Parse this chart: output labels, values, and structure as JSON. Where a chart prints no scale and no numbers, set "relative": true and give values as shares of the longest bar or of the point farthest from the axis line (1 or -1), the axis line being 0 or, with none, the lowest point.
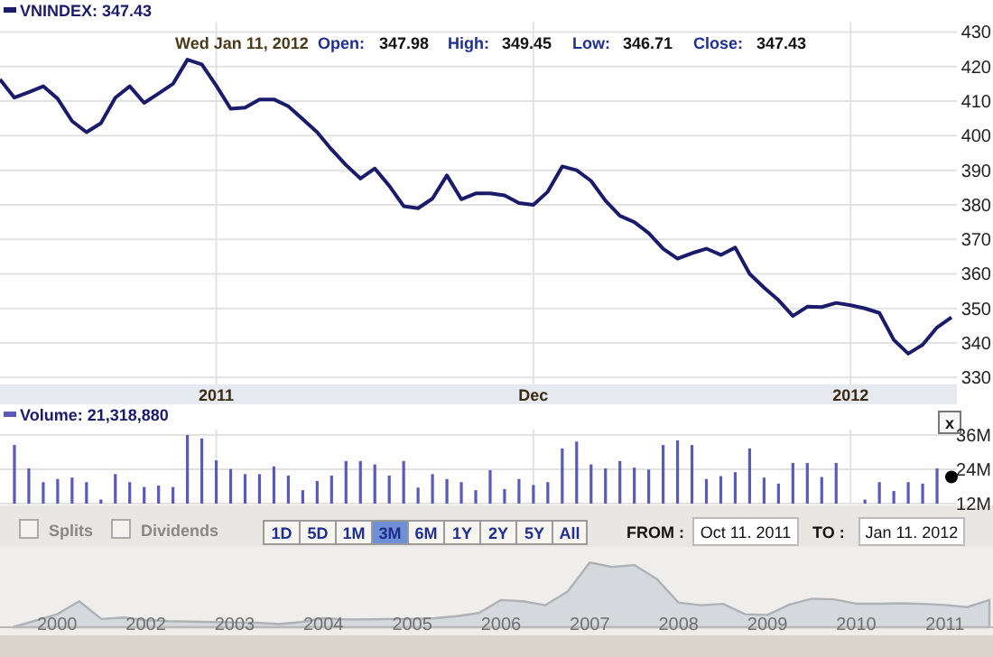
{
  "chart_data": [
    {
      "type": "line",
      "title": "VNINDEX: 347.43",
      "annotations": [
        "Wed Jan 11, 2012",
        "Open:",
        "347.98",
        "High:",
        "349.45",
        "Low:",
        "346.71",
        "Close:",
        "347.43"
      ],
      "categories": [
        null,
        null,
        null,
        null,
        null,
        null,
        null,
        null,
        null,
        null,
        null,
        null,
        null,
        null,
        null,
        "2011",
        null,
        null,
        null,
        null,
        null,
        null,
        null,
        null,
        null,
        null,
        null,
        null,
        null,
        null,
        null,
        null,
        null,
        null,
        null,
        null,
        null,
        "Dec",
        null,
        null,
        null,
        null,
        null,
        null,
        null,
        null,
        null,
        null,
        null,
        null,
        null,
        null,
        null,
        null,
        null,
        null,
        null,
        null,
        null,
        "2012",
        null,
        null,
        null,
        null,
        null,
        null,
        null
      ],
      "values": [
        416.3,
        411,
        412.6,
        414.3,
        410.7,
        404.2,
        401,
        403.6,
        411,
        414.3,
        409.5,
        412.2,
        415,
        422,
        420.6,
        414.5,
        407.8,
        408.1,
        410.5,
        410.5,
        408.5,
        404.8,
        401,
        396,
        391.5,
        387.6,
        390.5,
        385.5,
        379.6,
        379,
        381.8,
        388.5,
        381.6,
        383.3,
        383.3,
        382.7,
        380.5,
        380,
        383.8,
        391.1,
        390,
        386.9,
        381.2,
        376.8,
        375,
        371.8,
        367.3,
        364.4,
        366,
        367.3,
        365.5,
        367.6,
        360,
        356,
        352.4,
        347.8,
        350.5,
        350.4,
        351.6,
        350.9,
        350,
        348.7,
        340.9,
        336.9,
        339.5,
        344.5,
        347.4
      ],
      "color": "#1b1b6b",
      "ylim": [
        328,
        433
      ],
      "yticks": [
        330,
        340,
        350,
        360,
        370,
        380,
        390,
        400,
        410,
        420,
        430
      ],
      "grid": true
    },
    {
      "type": "bar",
      "title": "Volume: 21,318,880",
      "categories": [
        null,
        null,
        null,
        null,
        null,
        null,
        null,
        null,
        null,
        null,
        null,
        null,
        null,
        null,
        null,
        null,
        null,
        null,
        null,
        null,
        null,
        null,
        null,
        null,
        null,
        null,
        null,
        null,
        null,
        null,
        null,
        null,
        null,
        null,
        null,
        null,
        null,
        null,
        null,
        null,
        null,
        null,
        null,
        null,
        null,
        null,
        null,
        null,
        null,
        null,
        null,
        null,
        null,
        null,
        null,
        null,
        null,
        null,
        null,
        null,
        null,
        null,
        null,
        null,
        null,
        null,
        null
      ],
      "series": [
        {
          "color": "#5a5ab8",
          "values": [
            null,
            32.5,
            24.3,
            19.5,
            20.6,
            21.1,
            19.5,
            13.4,
            22.3,
            19.5,
            17.8,
            18.3,
            17.8,
            36,
            34.8,
            27.1,
            24.1,
            22.3,
            22.3,
            25,
            21.8,
            16.7,
            19.9,
            21.8,
            26.9,
            26.9,
            25.7,
            21.8,
            26.9,
            17.6,
            22.3,
            20.6,
            19.5,
            16.7,
            23.7,
            17.1,
            20.6,
            18.5,
            19.5,
            31.3,
            33.7,
            25.7,
            24.3,
            26.9,
            24.6,
            23.9,
            32.5,
            34.1,
            32.5,
            20.6,
            21.6,
            23,
            31.3,
            21.1,
            19,
            26.2,
            26.2,
            21.3,
            26.2,
            null,
            13.4,
            19.5,
            16.4,
            19.5,
            19,
            24.3,
            null
          ]
        },
        {
          "type": "scatter",
          "color": "#000000",
          "values": [
            null,
            null,
            null,
            null,
            null,
            null,
            null,
            null,
            null,
            null,
            null,
            null,
            null,
            null,
            null,
            null,
            null,
            null,
            null,
            null,
            null,
            null,
            null,
            null,
            null,
            null,
            null,
            null,
            null,
            null,
            null,
            null,
            null,
            null,
            null,
            null,
            null,
            null,
            null,
            null,
            null,
            null,
            null,
            null,
            null,
            null,
            null,
            null,
            null,
            null,
            null,
            null,
            null,
            null,
            null,
            null,
            null,
            null,
            null,
            null,
            null,
            null,
            null,
            null,
            null,
            null,
            21.3
          ]
        }
      ],
      "marker": "circle",
      "ylim": [
        12,
        36
      ],
      "yticks": [
        {
          "value": 12,
          "label": "12M"
        },
        {
          "value": 24,
          "label": "24M"
        },
        {
          "value": 36,
          "label": "36M"
        }
      ],
      "grid": true,
      "tick_labels": "y"
    },
    {
      "type": "area",
      "relative": true,
      "categories": [
        null,
        null,
        "2000",
        null,
        null,
        null,
        "2002",
        null,
        null,
        null,
        "2003",
        null,
        null,
        null,
        "2004",
        null,
        null,
        null,
        "2005",
        null,
        null,
        null,
        "2006",
        null,
        null,
        null,
        "2007",
        null,
        null,
        null,
        "2008",
        null,
        null,
        null,
        "2009",
        null,
        null,
        null,
        "2010",
        null,
        null,
        null,
        "2011",
        null,
        null
      ],
      "values": [
        0,
        0.098,
        0.2,
        0.4,
        0.127,
        0.15,
        0.11,
        0.095,
        0.088,
        0.08,
        0.075,
        0.069,
        0.049,
        0.08,
        0.14,
        0.12,
        0.122,
        0.127,
        0.127,
        0.14,
        0.17,
        0.22,
        0.42,
        0.4,
        0.34,
        0.55,
        1,
        0.93,
        0.96,
        0.75,
        0.38,
        0.34,
        0.36,
        0.2,
        0.19,
        0.35,
        0.44,
        0.43,
        0.363,
        0.363,
        0.37,
        0.36,
        0.343,
        0.31,
        0.42
      ],
      "color": "#d5d8dc"
    },
    {
      "type": "other",
      "annotations": [
        "Splits",
        "Dividends",
        "1D",
        "5D",
        "1M",
        "3M",
        "6M",
        "1Y",
        "2Y",
        "5Y",
        "All",
        "FROM :",
        "Oct 11. 2011",
        "TO :",
        "Jan 11. 2012",
        "x"
      ]
    }
  ]
}
